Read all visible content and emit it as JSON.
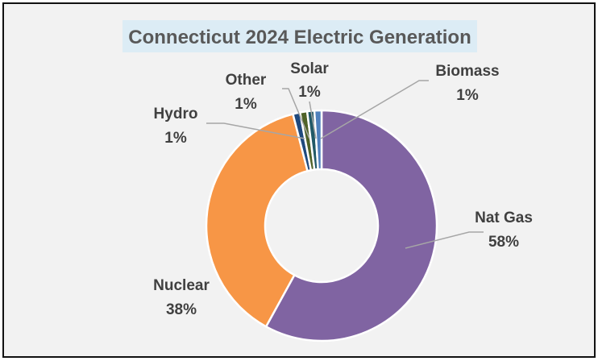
{
  "chart_data": {
    "type": "pie",
    "variant": "donut",
    "title": "Connecticut 2024 Electric Generation",
    "slices": [
      {
        "name": "Nat Gas",
        "value": 58,
        "label": "58%",
        "color": "#8064a2"
      },
      {
        "name": "Nuclear",
        "value": 38,
        "label": "38%",
        "color": "#f79646"
      },
      {
        "name": "Hydro",
        "value": 1,
        "label": "1%",
        "color": "#1f497d"
      },
      {
        "name": "Other",
        "value": 1,
        "label": "1%",
        "color": "#4f6228"
      },
      {
        "name": "Solar",
        "value": 1,
        "label": "1%",
        "color": "#215967"
      },
      {
        "name": "Biomass",
        "value": 1,
        "label": "1%",
        "color": "#4f81bd"
      }
    ],
    "legend": "none",
    "colors": {
      "background": "#f2f2f2",
      "title_background": "#dcecf5",
      "text": "#404040"
    }
  }
}
